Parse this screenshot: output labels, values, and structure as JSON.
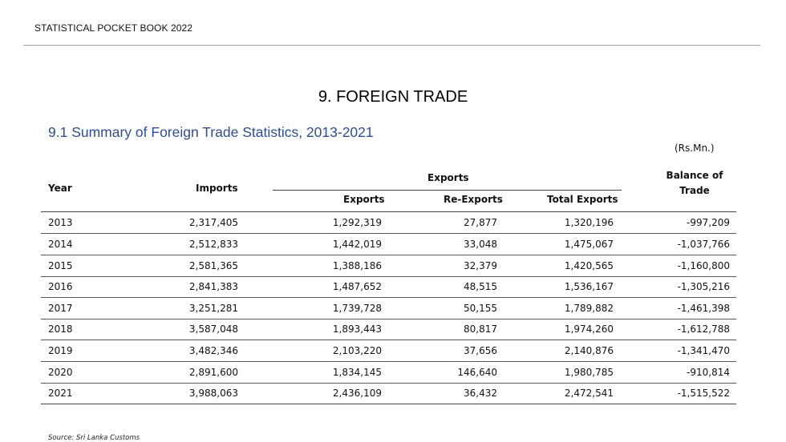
{
  "header": {
    "text": "STATISTICAL POCKET BOOK 2022"
  },
  "chapter_title": "9.  FOREIGN TRADE",
  "table": {
    "title": "9.1 Summary of  Foreign Trade Statistics, 2013-2021",
    "units": "(Rs.Mn.)",
    "headers": {
      "year": "Year",
      "imports": "Imports",
      "exports_group": "Exports",
      "exports": "Exports",
      "re_exports": "Re-Exports",
      "total_exports": "Total Exports",
      "balance_line1": "Balance of",
      "balance_line2": "Trade"
    },
    "rows": [
      {
        "year": "2013",
        "imports": "2,317,405",
        "exports": "1,292,319",
        "re_exports": "27,877",
        "total_exports": "1,320,196",
        "balance": "-997,209"
      },
      {
        "year": "2014",
        "imports": "2,512,833",
        "exports": "1,442,019",
        "re_exports": "33,048",
        "total_exports": "1,475,067",
        "balance": "-1,037,766"
      },
      {
        "year": "2015",
        "imports": "2,581,365",
        "exports": "1,388,186",
        "re_exports": "32,379",
        "total_exports": "1,420,565",
        "balance": "-1,160,800"
      },
      {
        "year": "2016",
        "imports": "2,841,383",
        "exports": "1,487,652",
        "re_exports": "48,515",
        "total_exports": "1,536,167",
        "balance": "-1,305,216"
      },
      {
        "year": "2017",
        "imports": "3,251,281",
        "exports": "1,739,728",
        "re_exports": "50,155",
        "total_exports": "1,789,882",
        "balance": "-1,461,398"
      },
      {
        "year": "2018",
        "imports": "3,587,048",
        "exports": "1,893,443",
        "re_exports": "80,817",
        "total_exports": "1,974,260",
        "balance": "-1,612,788"
      },
      {
        "year": "2019",
        "imports": "3,482,346",
        "exports": "2,103,220",
        "re_exports": "37,656",
        "total_exports": "2,140,876",
        "balance": "-1,341,470"
      },
      {
        "year": "2020",
        "imports": "2,891,600",
        "exports": "1,834,145",
        "re_exports": "146,640",
        "total_exports": "1,980,785",
        "balance": "-910,814"
      },
      {
        "year": "2021",
        "imports": "3,988,063",
        "exports": "2,436,109",
        "re_exports": "36,432",
        "total_exports": "2,472,541",
        "balance": "-1,515,522"
      }
    ]
  },
  "source": "Source: Sri Lanka Customs"
}
